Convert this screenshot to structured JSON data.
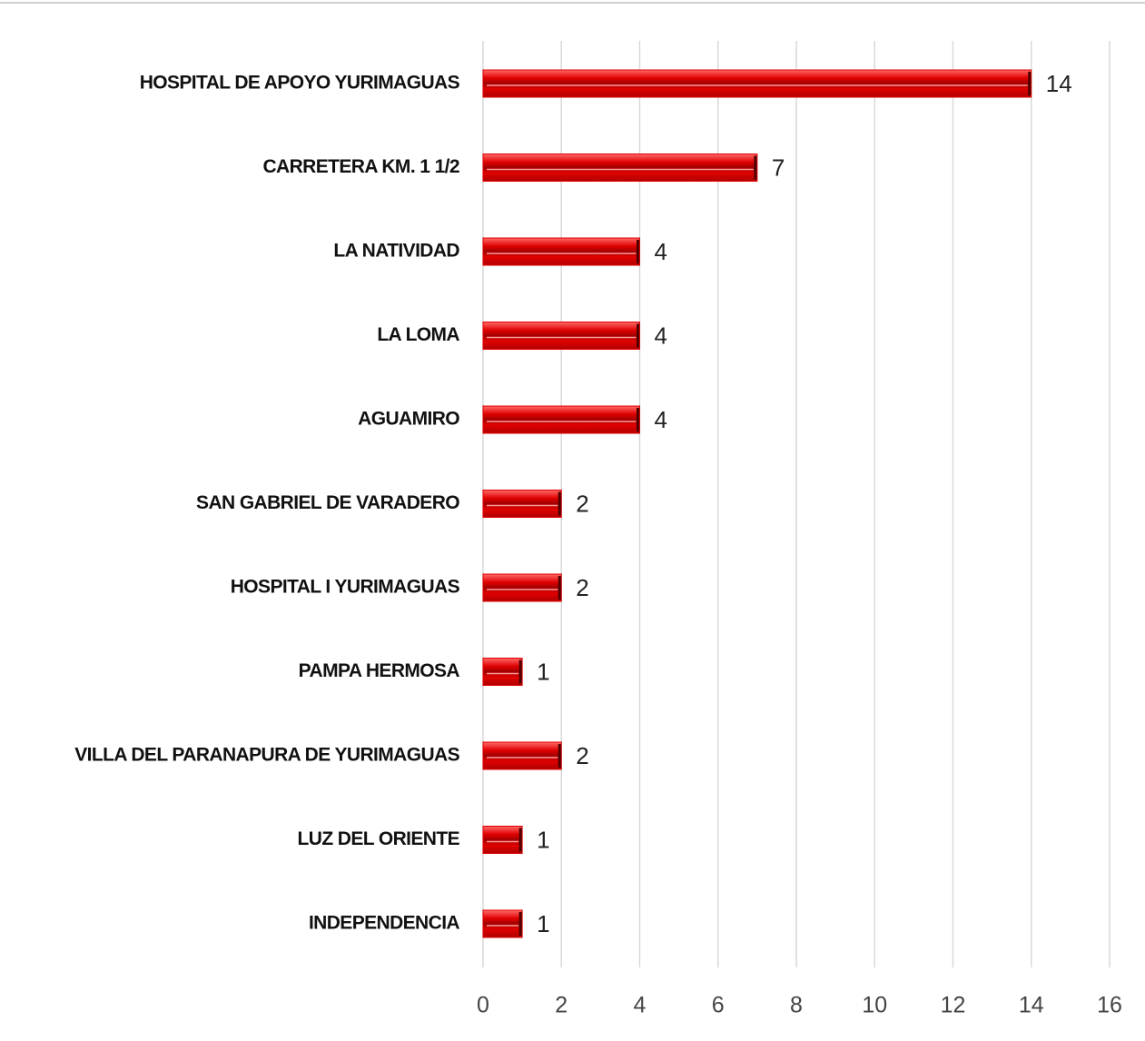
{
  "chart_data": {
    "type": "barh",
    "categories": [
      "HOSPITAL DE APOYO YURIMAGUAS",
      "CARRETERA KM. 1 1/2",
      "LA NATIVIDAD",
      "LA LOMA",
      "AGUAMIRO",
      "SAN GABRIEL DE VARADERO",
      "HOSPITAL I YURIMAGUAS",
      "PAMPA HERMOSA",
      "VILLA DEL PARANAPURA DE YURIMAGUAS",
      "LUZ DEL ORIENTE",
      "INDEPENDENCIA"
    ],
    "values": [
      14,
      7,
      4,
      4,
      4,
      2,
      2,
      1,
      2,
      1,
      1
    ],
    "color": "#e00000",
    "xlim": [
      0,
      16
    ],
    "xticks": [
      0,
      2,
      4,
      6,
      8,
      10,
      12,
      14,
      16
    ],
    "grid": true
  }
}
